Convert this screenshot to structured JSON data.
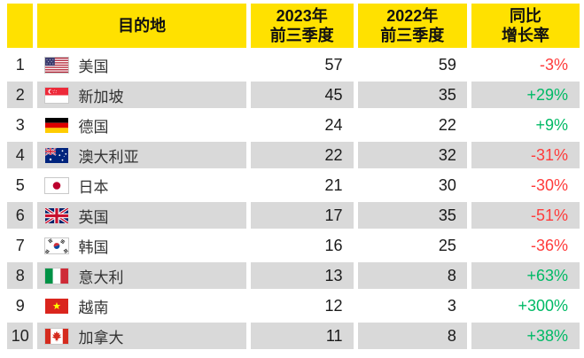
{
  "colors": {
    "header_bg": "#FFE100",
    "alt_row_bg": "#D9D9D9",
    "positive": "#00BA66",
    "negative": "#FF3B3B",
    "header_text": "#111111",
    "body_text": "#1A1A1A"
  },
  "table": {
    "headers": [
      {
        "id": "rank",
        "line1": "",
        "line2": ""
      },
      {
        "id": "destination",
        "line1": "目的地",
        "line2": ""
      },
      {
        "id": "y2023",
        "line1": "2023年",
        "line2": "前三季度"
      },
      {
        "id": "y2022",
        "line1": "2022年",
        "line2": "前三季度"
      },
      {
        "id": "growth",
        "line1": "同比",
        "line2": "增长率"
      }
    ],
    "rows": [
      {
        "rank": "1",
        "flag_icon": "flag-us-icon",
        "country": "美国",
        "y2023": "57",
        "y2022": "59",
        "growth": "-3%",
        "trend": "negative"
      },
      {
        "rank": "2",
        "flag_icon": "flag-singapore-icon",
        "country": "新加坡",
        "y2023": "45",
        "y2022": "35",
        "growth": "+29%",
        "trend": "positive"
      },
      {
        "rank": "3",
        "flag_icon": "flag-germany-icon",
        "country": "德国",
        "y2023": "24",
        "y2022": "22",
        "growth": "+9%",
        "trend": "positive"
      },
      {
        "rank": "4",
        "flag_icon": "flag-australia-icon",
        "country": "澳大利亚",
        "y2023": "22",
        "y2022": "32",
        "growth": "-31%",
        "trend": "negative"
      },
      {
        "rank": "5",
        "flag_icon": "flag-japan-icon",
        "country": "日本",
        "y2023": "21",
        "y2022": "30",
        "growth": "-30%",
        "trend": "negative"
      },
      {
        "rank": "6",
        "flag_icon": "flag-uk-icon",
        "country": "英国",
        "y2023": "17",
        "y2022": "35",
        "growth": "-51%",
        "trend": "negative"
      },
      {
        "rank": "7",
        "flag_icon": "flag-south-korea-icon",
        "country": "韩国",
        "y2023": "16",
        "y2022": "25",
        "growth": "-36%",
        "trend": "negative"
      },
      {
        "rank": "8",
        "flag_icon": "flag-italy-icon",
        "country": "意大利",
        "y2023": "13",
        "y2022": "8",
        "growth": "+63%",
        "trend": "positive"
      },
      {
        "rank": "9",
        "flag_icon": "flag-vietnam-icon",
        "country": "越南",
        "y2023": "12",
        "y2022": "3",
        "growth": "+300%",
        "trend": "positive"
      },
      {
        "rank": "10",
        "flag_icon": "flag-canada-icon",
        "country": "加拿大",
        "y2023": "11",
        "y2022": "8",
        "growth": "+38%",
        "trend": "positive"
      }
    ]
  }
}
